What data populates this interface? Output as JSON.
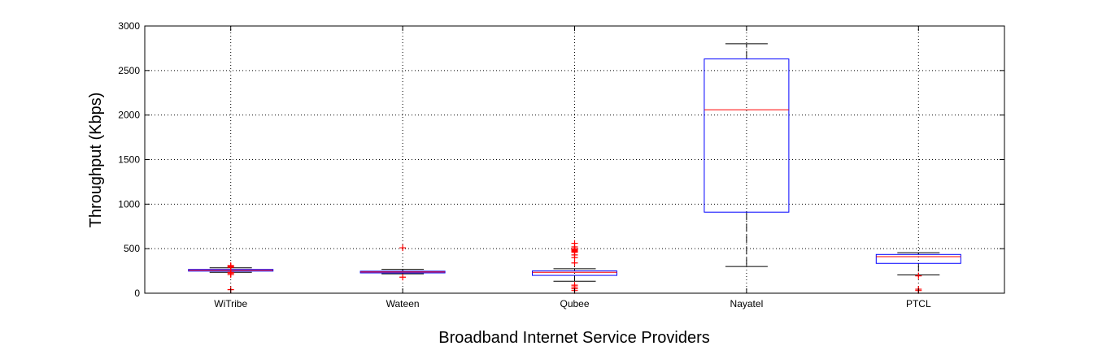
{
  "chart_data": {
    "type": "boxplot",
    "title": "",
    "xlabel": "Broadband Internet Service Providers",
    "ylabel": "Throughput (Kbps)",
    "ylim": [
      0,
      3000
    ],
    "yticks": [
      0,
      500,
      1000,
      1500,
      2000,
      2500,
      3000
    ],
    "grid": true,
    "categories": [
      "WiTribe",
      "Wateen",
      "Qubee",
      "Nayatel",
      "PTCL"
    ],
    "boxes": [
      {
        "category": "WiTribe",
        "whisker_low": 235,
        "q1": 248,
        "median": 258,
        "q3": 267,
        "whisker_high": 285,
        "outliers": [
          40,
          210,
          225,
          235,
          290,
          300,
          310
        ]
      },
      {
        "category": "Wateen",
        "whisker_low": 218,
        "q1": 228,
        "median": 238,
        "q3": 247,
        "whisker_high": 268,
        "outliers": [
          180,
          510
        ]
      },
      {
        "category": "Qubee",
        "whisker_low": 135,
        "q1": 200,
        "median": 235,
        "q3": 250,
        "whisker_high": 275,
        "outliers": [
          30,
          50,
          70,
          90,
          340,
          400,
          430,
          460,
          470,
          480,
          490,
          500,
          520,
          560
        ]
      },
      {
        "category": "Nayatel",
        "whisker_low": 300,
        "q1": 910,
        "median": 2060,
        "q3": 2630,
        "whisker_high": 2800,
        "outliers": []
      },
      {
        "category": "PTCL",
        "whisker_low": 205,
        "q1": 335,
        "median": 410,
        "q3": 435,
        "whisker_high": 455,
        "outliers": [
          30,
          45,
          195
        ]
      }
    ],
    "colors": {
      "box": "#0000ff",
      "median": "#ff0000",
      "whisker": "#000000",
      "outlier": "#ff0000",
      "grid": "#000000"
    }
  }
}
